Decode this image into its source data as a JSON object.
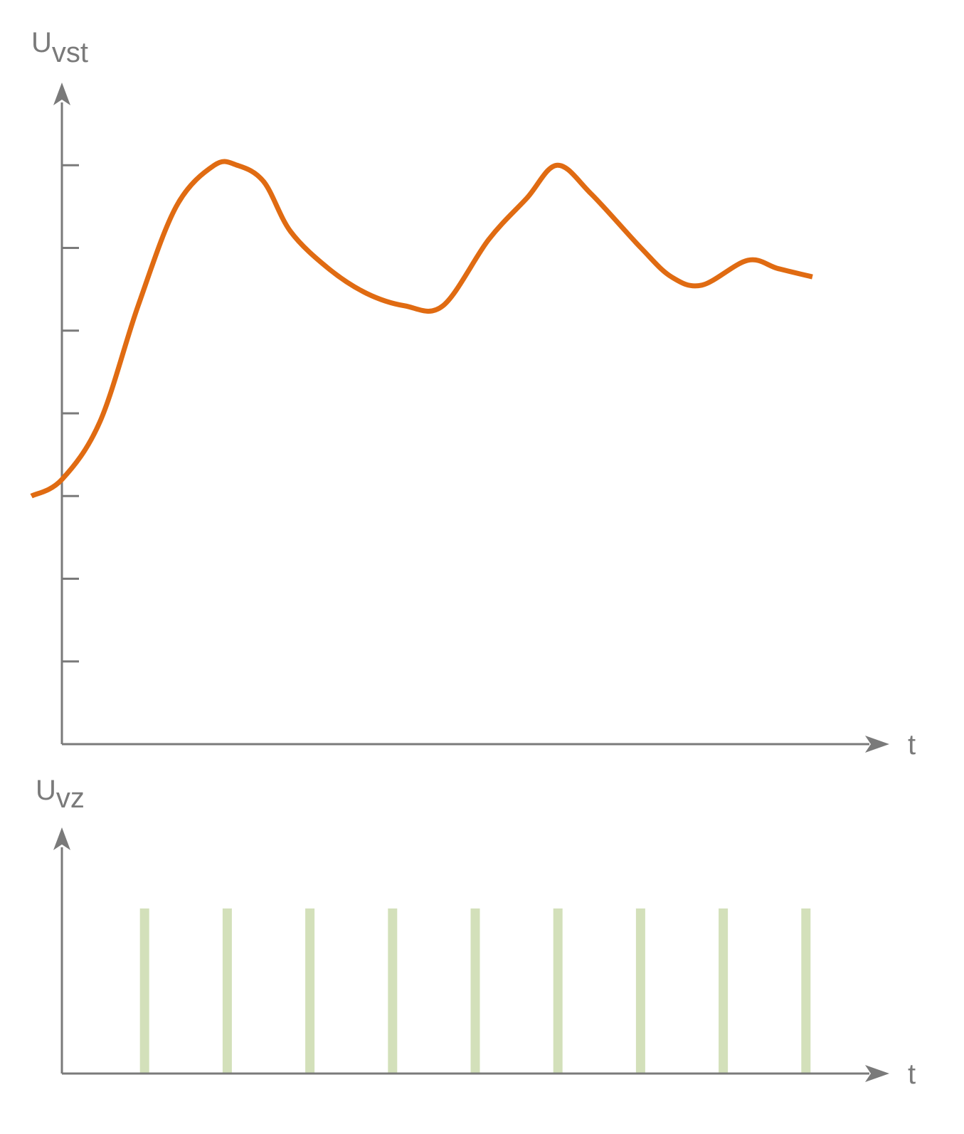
{
  "colors": {
    "axis": "#7a7a7a",
    "signal": "#e06b12",
    "pulse": "#d3e0ba",
    "background": "#ffffff"
  },
  "chart_data": [
    {
      "type": "line",
      "title": "",
      "ylabel_main": "U",
      "ylabel_sub": "vst",
      "xlabel": "t",
      "x_range": [
        0,
        10
      ],
      "y_range": [
        0,
        8
      ],
      "y_tick_count": 7,
      "grid": false,
      "legend": "none",
      "series": [
        {
          "x": [
            -0.4,
            0.0,
            0.5,
            1.0,
            1.5,
            2.0,
            2.3,
            2.65,
            3.0,
            3.5,
            4.0,
            4.5,
            5.0,
            5.6,
            6.1,
            6.5,
            6.95,
            7.6,
            8.0,
            8.4,
            9.0,
            9.4,
            9.85
          ],
          "y": [
            3.0,
            3.2,
            3.9,
            5.3,
            6.5,
            7.0,
            7.0,
            6.8,
            6.2,
            5.75,
            5.45,
            5.3,
            5.3,
            6.1,
            6.6,
            7.0,
            6.65,
            6.0,
            5.65,
            5.55,
            5.85,
            5.75,
            5.65
          ]
        }
      ]
    },
    {
      "type": "bar",
      "title": "",
      "ylabel_main": "U",
      "ylabel_sub": "vz",
      "xlabel": "t",
      "x_range": [
        0,
        10
      ],
      "y_range": [
        0,
        1.3
      ],
      "grid": false,
      "legend": "none",
      "pulse_times": [
        1,
        2,
        3,
        4,
        5,
        6,
        7,
        8,
        9
      ],
      "pulse_height": 1
    }
  ]
}
